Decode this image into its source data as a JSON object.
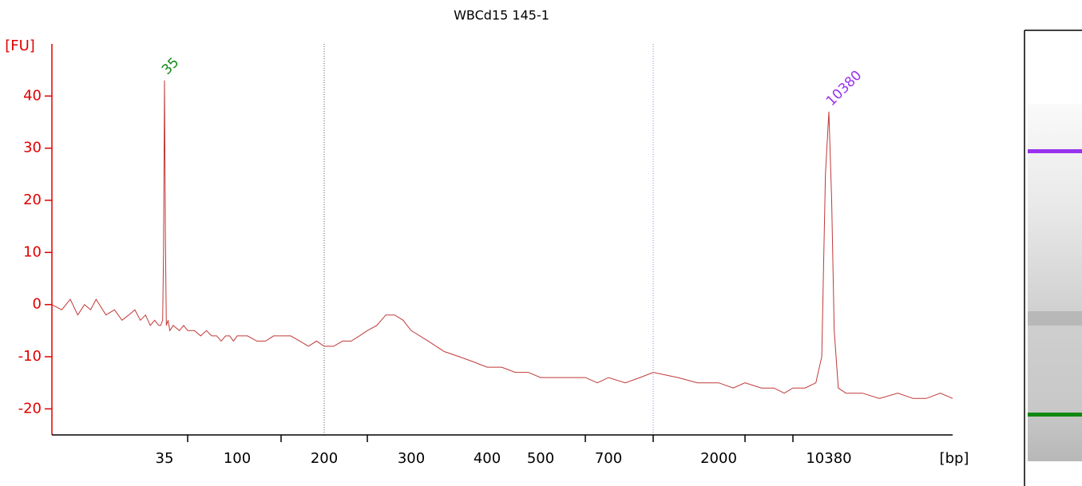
{
  "chart_data": {
    "type": "line",
    "title": "WBCd15 145-1",
    "y_label": "[FU]",
    "x_label": "[bp]",
    "log_x": true,
    "xlim": [
      6,
      40000
    ],
    "xticks": [
      35,
      100,
      200,
      300,
      400,
      500,
      700,
      2000,
      10380
    ],
    "xticks_minor": [
      50,
      150,
      250,
      600,
      1000,
      3000,
      7000
    ],
    "ylim": [
      -25,
      50
    ],
    "yticks": [
      -20,
      -10,
      0,
      10,
      20,
      30,
      40
    ],
    "axis_color": "#e00000",
    "series": [
      {
        "color": "#c03838",
        "x": [
          6,
          7,
          8,
          9,
          10,
          11,
          12,
          14,
          16,
          18,
          20,
          22,
          24,
          26,
          28,
          30,
          32,
          33,
          34,
          34.5,
          35,
          35.5,
          36,
          37,
          38,
          40,
          44,
          47,
          50,
          55,
          60,
          65,
          70,
          75,
          80,
          85,
          90,
          95,
          100,
          110,
          120,
          130,
          140,
          150,
          160,
          170,
          180,
          190,
          200,
          210,
          220,
          230,
          240,
          250,
          260,
          270,
          280,
          290,
          300,
          320,
          340,
          360,
          380,
          400,
          425,
          450,
          475,
          500,
          550,
          600,
          650,
          700,
          800,
          900,
          1000,
          1300,
          1600,
          2000,
          2500,
          3000,
          4000,
          5000,
          6000,
          7000,
          8000,
          9000,
          9600,
          10000,
          10380,
          10700,
          11000,
          11500,
          12500,
          15000,
          18000,
          22000,
          26000,
          30000,
          35000,
          40000
        ],
        "values": [
          0,
          -1,
          1,
          -2,
          0,
          -1,
          1,
          -2,
          -1,
          -3,
          -2,
          -1,
          -3,
          -2,
          -4,
          -3,
          -4,
          -4,
          -3,
          10,
          43,
          12,
          -4,
          -3,
          -5,
          -4,
          -5,
          -4,
          -5,
          -5,
          -6,
          -5,
          -6,
          -6,
          -7,
          -6,
          -6,
          -7,
          -6,
          -6,
          -7,
          -7,
          -6,
          -6,
          -6,
          -7,
          -8,
          -7,
          -8,
          -8,
          -7,
          -7,
          -6,
          -5,
          -4,
          -2,
          -2,
          -3,
          -5,
          -7,
          -9,
          -10,
          -11,
          -12,
          -12,
          -13,
          -13,
          -14,
          -14,
          -14,
          -15,
          -14,
          -15,
          -14,
          -13,
          -14,
          -15,
          -15,
          -16,
          -15,
          -16,
          -16,
          -17,
          -16,
          -16,
          -15,
          -10,
          25,
          37,
          20,
          -5,
          -16,
          -17,
          -17,
          -18,
          -17,
          -18,
          -18,
          -17,
          -18
        ]
      }
    ],
    "annotations": [
      {
        "text": "35",
        "x": 35,
        "y": 43,
        "color": "#118811"
      },
      {
        "text": "10380",
        "x": 10380,
        "y": 37,
        "color": "#9933ee"
      }
    ]
  }
}
